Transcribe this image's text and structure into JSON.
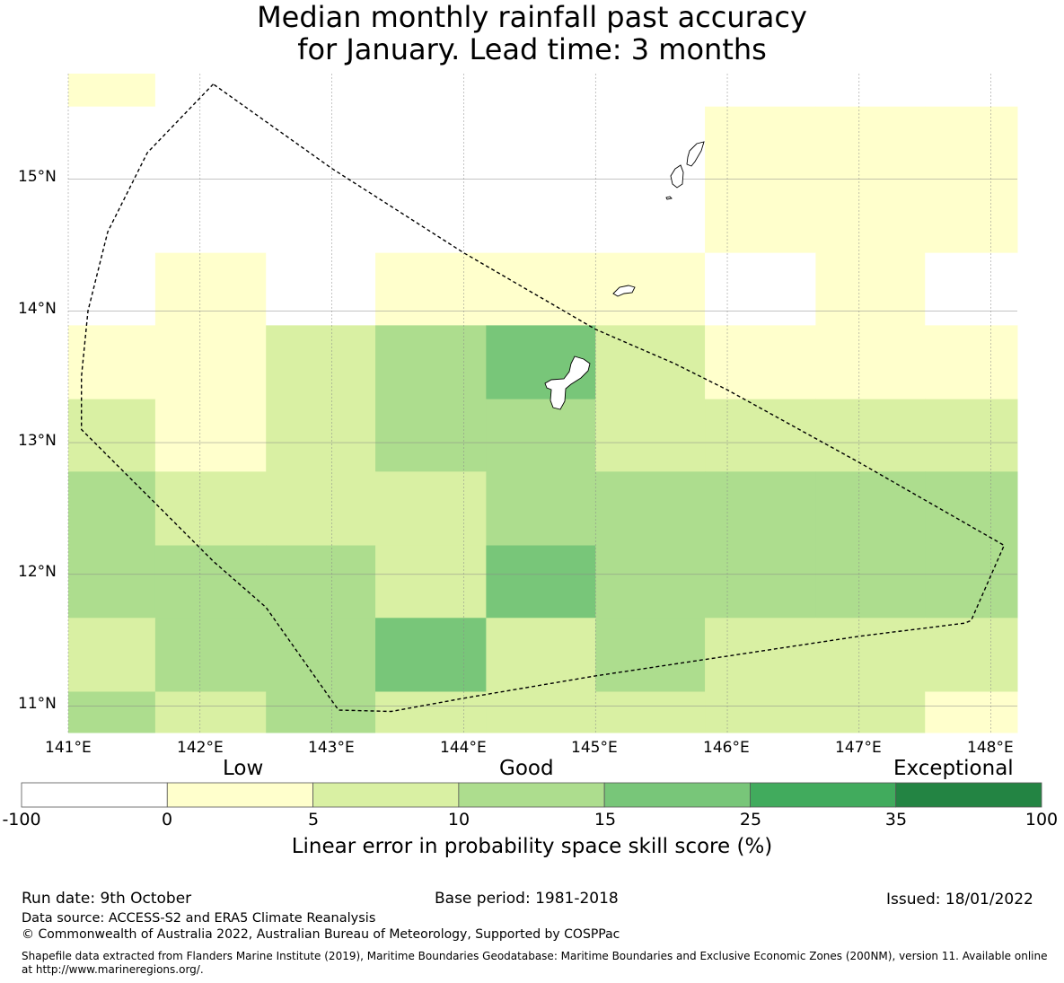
{
  "title_line1": "Median monthly rainfall past accuracy",
  "title_line2": "for January. Lead time: 3 months",
  "map": {
    "lon_labels": [
      "141°E",
      "142°E",
      "143°E",
      "144°E",
      "145°E",
      "146°E",
      "147°E",
      "148°E"
    ],
    "lat_labels": [
      "15°N",
      "14°N",
      "13°N",
      "12°N",
      "11°N"
    ],
    "lon_range": [
      141.0,
      148.2
    ],
    "lat_range": [
      10.8,
      15.8
    ],
    "grid_lon_edges": [
      141.0,
      141.66,
      142.5,
      143.33,
      144.17,
      145.0,
      145.83,
      146.67,
      147.5,
      148.2
    ],
    "grid_lat_edges": [
      15.8,
      15.55,
      14.44,
      13.89,
      13.33,
      12.78,
      12.22,
      11.67,
      11.11,
      10.8
    ],
    "cell_categories": [
      [
        1,
        0,
        0,
        0,
        0,
        0,
        0,
        0,
        0
      ],
      [
        0,
        0,
        0,
        0,
        0,
        0,
        1,
        1,
        1
      ],
      [
        0,
        1,
        0,
        1,
        1,
        1,
        0,
        1,
        0
      ],
      [
        1,
        1,
        2,
        3,
        4,
        2,
        1,
        1,
        1
      ],
      [
        2,
        1,
        2,
        3,
        3,
        2,
        2,
        2,
        2
      ],
      [
        3,
        2,
        2,
        2,
        3,
        3,
        3,
        3,
        3
      ],
      [
        3,
        3,
        3,
        2,
        4,
        3,
        3,
        3,
        3
      ],
      [
        2,
        3,
        3,
        4,
        2,
        3,
        2,
        2,
        2
      ],
      [
        3,
        2,
        3,
        2,
        2,
        2,
        2,
        2,
        1
      ]
    ],
    "eez_boundary_lonlat": [
      [
        142.1,
        15.72
      ],
      [
        141.6,
        15.2
      ],
      [
        141.3,
        14.6
      ],
      [
        141.15,
        14.0
      ],
      [
        141.1,
        13.5
      ],
      [
        141.1,
        13.1
      ],
      [
        141.35,
        12.85
      ],
      [
        141.7,
        12.5
      ],
      [
        142.1,
        12.1
      ],
      [
        142.5,
        11.75
      ],
      [
        143.05,
        10.97
      ],
      [
        143.45,
        10.96
      ],
      [
        144.0,
        11.06
      ],
      [
        145.0,
        11.23
      ],
      [
        146.0,
        11.38
      ],
      [
        147.0,
        11.53
      ],
      [
        147.8,
        11.63
      ],
      [
        147.85,
        11.65
      ],
      [
        148.1,
        12.22
      ],
      [
        147.0,
        12.85
      ],
      [
        146.0,
        13.4
      ],
      [
        145.6,
        13.6
      ],
      [
        145.0,
        13.86
      ],
      [
        144.0,
        14.44
      ],
      [
        143.0,
        15.08
      ],
      [
        142.1,
        15.72
      ]
    ]
  },
  "colorbar": {
    "words": [
      "Low",
      "Good",
      "Exceptional"
    ],
    "tick_labels": [
      "-100",
      "0",
      "5",
      "10",
      "15",
      "25",
      "35",
      "100"
    ],
    "colors": [
      "#ffffff",
      "#ffffcc",
      "#d9f0a3",
      "#addd8e",
      "#78c679",
      "#41ab5d",
      "#238443"
    ],
    "label": "Linear error in probability space skill score (%)"
  },
  "footer": {
    "run_date": "Run date: 9th October",
    "base_period": "Base period: 1981-2018",
    "issued": "Issued: 18/01/2022",
    "data_source": "Data source: ACCESS-S2 and ERA5 Climate Reanalysis",
    "copyright": "© Commonwealth of Australia 2022, Australian Bureau of Meteorology, Supported by COSPPac",
    "shapefile_line1": "Shapefile data extracted from Flanders Marine Institute (2019), Maritime Boundaries Geodatabase: Maritime Boundaries and Exclusive Economic Zones (200NM), version 11. Available online",
    "shapefile_line2": "at http://www.marineregions.org/."
  }
}
